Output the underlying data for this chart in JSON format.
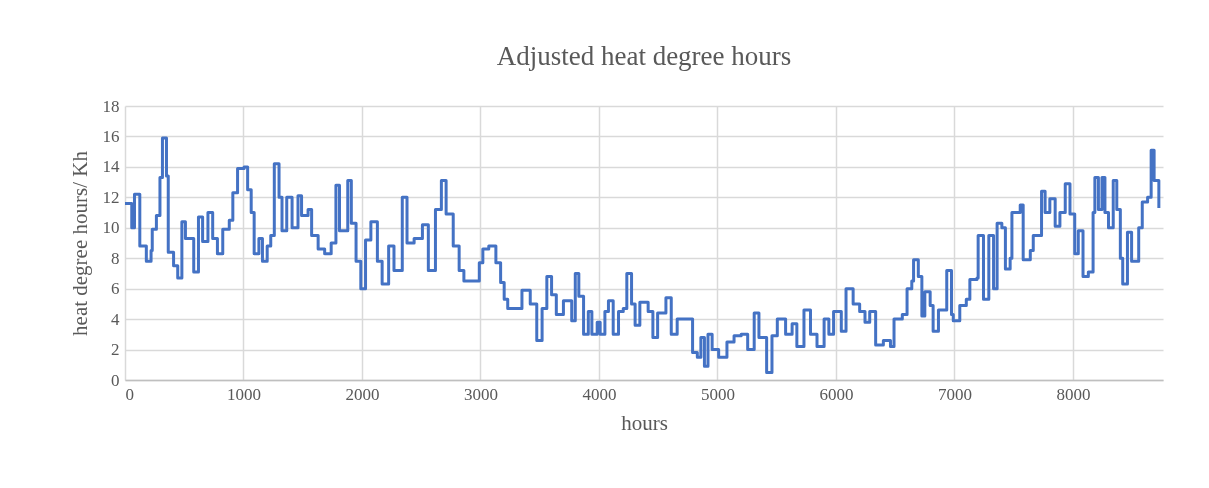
{
  "chart_data": {
    "type": "step",
    "title": "Adjusted heat degree hours",
    "xlabel": "hours",
    "ylabel": "heat degree hours/ Kh",
    "x": [
      0,
      57,
      80,
      125,
      180,
      220,
      230,
      265,
      295,
      316,
      350,
      365,
      410,
      445,
      480,
      510,
      580,
      620,
      655,
      700,
      740,
      780,
      825,
      880,
      910,
      950,
      1005,
      1035,
      1065,
      1090,
      1130,
      1160,
      1200,
      1230,
      1260,
      1300,
      1325,
      1365,
      1410,
      1460,
      1490,
      1545,
      1575,
      1630,
      1685,
      1740,
      1780,
      1810,
      1880,
      1910,
      1950,
      1990,
      2030,
      2075,
      2130,
      2170,
      2225,
      2270,
      2340,
      2380,
      2440,
      2510,
      2560,
      2620,
      2670,
      2710,
      2770,
      2820,
      2860,
      2930,
      2990,
      3020,
      3070,
      3130,
      3170,
      3200,
      3230,
      3350,
      3420,
      3475,
      3520,
      3560,
      3600,
      3640,
      3700,
      3770,
      3800,
      3830,
      3870,
      3910,
      3940,
      3985,
      4010,
      4050,
      4080,
      4120,
      4165,
      4205,
      4235,
      4275,
      4305,
      4345,
      4415,
      4455,
      4495,
      4565,
      4610,
      4660,
      4760,
      4790,
      4830,
      4860,
      4890,
      4920,
      4955,
      5010,
      5080,
      5140,
      5200,
      5255,
      5310,
      5350,
      5415,
      5460,
      5505,
      5575,
      5630,
      5670,
      5730,
      5785,
      5840,
      5900,
      5940,
      5980,
      6045,
      6085,
      6145,
      6200,
      6245,
      6285,
      6335,
      6400,
      6460,
      6490,
      6560,
      6600,
      6640,
      6655,
      6695,
      6725,
      6750,
      6795,
      6820,
      6865,
      6935,
      6975,
      6990,
      7045,
      7100,
      7130,
      7190,
      7200,
      7245,
      7290,
      7330,
      7360,
      7400,
      7430,
      7470,
      7485,
      7555,
      7580,
      7640,
      7665,
      7735,
      7765,
      7805,
      7850,
      7890,
      7935,
      7975,
      8015,
      8045,
      8085,
      8130,
      8170,
      8185,
      8215,
      8245,
      8270,
      8300,
      8340,
      8370,
      8400,
      8420,
      8460,
      8495,
      8525,
      8555,
      8585,
      8630,
      8660,
      8685,
      8725
    ],
    "series": [
      {
        "color": "#4472c4",
        "values": [
          11.6,
          10.0,
          12.2,
          8.8,
          7.8,
          8.5,
          9.9,
          10.8,
          13.3,
          15.9,
          13.4,
          8.4,
          7.5,
          6.7,
          10.4,
          9.3,
          7.1,
          10.7,
          9.1,
          11.0,
          9.3,
          8.3,
          9.9,
          10.5,
          12.3,
          13.9,
          14.0,
          12.5,
          11.0,
          8.3,
          9.3,
          7.8,
          8.8,
          9.5,
          14.2,
          12.0,
          9.8,
          12.0,
          10.0,
          12.1,
          10.8,
          11.2,
          9.5,
          8.6,
          8.3,
          9.0,
          12.8,
          9.8,
          13.1,
          10.3,
          7.8,
          6.0,
          9.2,
          10.4,
          7.8,
          6.3,
          8.8,
          7.2,
          12.0,
          9.0,
          9.3,
          10.2,
          7.2,
          11.2,
          13.1,
          10.9,
          8.8,
          7.2,
          6.5,
          6.5,
          7.7,
          8.6,
          8.8,
          7.7,
          6.4,
          5.3,
          4.7,
          5.9,
          5.0,
          2.6,
          4.7,
          6.8,
          5.6,
          4.3,
          5.2,
          3.9,
          7.0,
          5.5,
          3.0,
          4.5,
          3.0,
          3.8,
          3.0,
          4.5,
          5.2,
          3.0,
          4.5,
          4.7,
          7.0,
          5.0,
          3.6,
          5.1,
          4.5,
          2.8,
          4.4,
          5.4,
          3.0,
          4.0,
          4.0,
          1.8,
          1.5,
          2.8,
          0.9,
          3.0,
          2.0,
          1.5,
          2.5,
          2.9,
          3.0,
          2.0,
          4.4,
          2.8,
          0.5,
          2.9,
          4.0,
          3.0,
          3.7,
          2.2,
          4.6,
          3.0,
          2.2,
          4.0,
          3.0,
          4.5,
          3.2,
          6.0,
          5.0,
          4.5,
          3.8,
          4.5,
          2.3,
          2.6,
          2.2,
          4.0,
          4.3,
          6.0,
          6.5,
          7.9,
          6.8,
          4.2,
          5.8,
          4.9,
          3.2,
          4.6,
          7.2,
          4.3,
          3.9,
          4.9,
          5.3,
          6.6,
          6.7,
          9.5,
          5.3,
          9.5,
          6.0,
          10.3,
          10.0,
          7.3,
          8.0,
          11.0,
          11.5,
          7.9,
          8.5,
          9.5,
          12.4,
          11.0,
          11.9,
          10.1,
          11.0,
          12.9,
          10.9,
          8.3,
          9.8,
          6.8,
          7.1,
          11.0,
          13.3,
          11.2,
          13.3,
          11.0,
          10.0,
          13.1,
          11.2,
          8.0,
          6.3,
          9.7,
          7.8,
          7.8,
          10.0,
          11.7,
          12.0,
          15.1,
          13.1,
          11.3
        ]
      }
    ],
    "xlim": [
      0,
      8760
    ],
    "xticks": [
      0,
      1000,
      2000,
      3000,
      4000,
      5000,
      6000,
      7000,
      8000
    ],
    "ylim": [
      0,
      18
    ],
    "yticks": [
      0,
      2,
      4,
      6,
      8,
      10,
      12,
      14,
      16,
      18
    ],
    "grid": true
  }
}
